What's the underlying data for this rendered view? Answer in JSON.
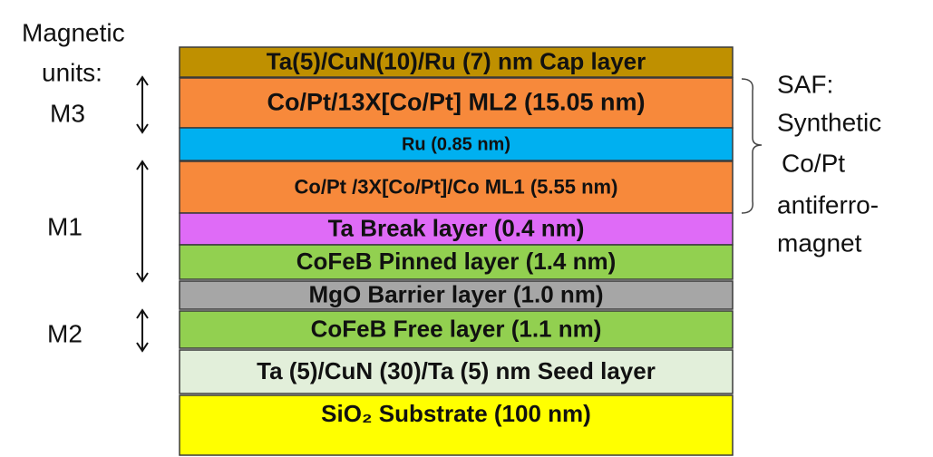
{
  "units_label": [
    "Magnetic",
    "units:"
  ],
  "units": {
    "m3": "M3",
    "m1": "M1",
    "m2": "M2"
  },
  "layers": [
    {
      "label": "Ta(5)/CuN(10)/Ru (7) nm Cap layer",
      "color": "#bf9000"
    },
    {
      "label": "Co/Pt/13X[Co/Pt] ML2 (15.05 nm)",
      "color": "#f7893b"
    },
    {
      "label": "Ru (0.85 nm)",
      "color": "#00b0f0"
    },
    {
      "label": "Co/Pt /3X[Co/Pt]/Co ML1 (5.55 nm)",
      "color": "#f7893b"
    },
    {
      "label": "Ta Break layer (0.4 nm)",
      "color": "#df6bf7"
    },
    {
      "label": "CoFeB Pinned layer (1.4 nm)",
      "color": "#92d050"
    },
    {
      "label": "MgO Barrier layer (1.0 nm)",
      "color": "#a6a6a6"
    },
    {
      "label": "CoFeB Free layer (1.1 nm)",
      "color": "#92d050"
    },
    {
      "label": "Ta (5)/CuN (30)/Ta (5) nm Seed layer",
      "color": "#e2efda"
    },
    {
      "label": "SiO₂ Substrate (100 nm)",
      "color": "#ffff00"
    }
  ],
  "saf_label": [
    "SAF:",
    "Synthetic",
    "Co/Pt",
    "antiferro-",
    "magnet"
  ]
}
